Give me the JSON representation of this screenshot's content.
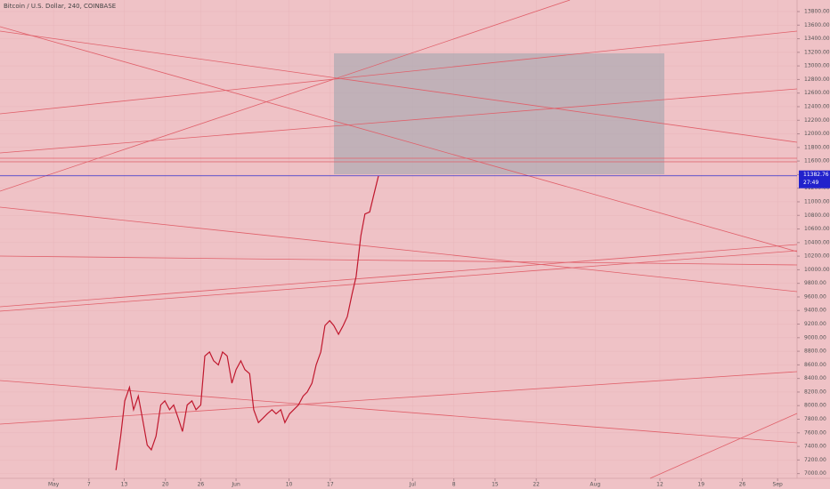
{
  "chart_data": {
    "type": "line",
    "title": "Bitcoin / U.S. Dollar, 240, COINBASE",
    "x": [
      131.6,
      132.4,
      133.1,
      133.9,
      134.6,
      135.4,
      136.1,
      136.9,
      137.6,
      138.4,
      139.2,
      139.9,
      140.7,
      141.4,
      142.2,
      142.9,
      143.7,
      144.5,
      145.2,
      146.0,
      146.7,
      147.5,
      148.2,
      149.0,
      149.7,
      150.5,
      151.3,
      152.0,
      152.8,
      153.5,
      154.3,
      155.0,
      155.8,
      156.5,
      157.3,
      158.1,
      158.8,
      159.6,
      160.3,
      161.1,
      161.8,
      162.6,
      163.4,
      164.1,
      164.9,
      165.6,
      166.4,
      167.1,
      167.9,
      168.6,
      169.4,
      170.2,
      170.9,
      171.7,
      172.4,
      173.2,
      173.9,
      174.7,
      175.4,
      176.2
    ],
    "values": [
      7050,
      7550,
      8070,
      8270,
      7940,
      8140,
      7810,
      7420,
      7350,
      7550,
      8010,
      8070,
      7940,
      8010,
      7810,
      7620,
      8010,
      8070,
      7940,
      8010,
      8730,
      8790,
      8660,
      8600,
      8790,
      8730,
      8330,
      8530,
      8660,
      8530,
      8470,
      7940,
      7750,
      7810,
      7880,
      7940,
      7880,
      7940,
      7750,
      7880,
      7940,
      8010,
      8140,
      8200,
      8330,
      8600,
      8790,
      9180,
      9250,
      9180,
      9050,
      9180,
      9310,
      9640,
      9900,
      10500,
      10820,
      10850,
      11100,
      11383
    ],
    "color": "#c0182e",
    "last_price": 11382.76,
    "countdown": "27:49",
    "xlim": [
      111.9,
      247.3
    ],
    "ylim": [
      6930,
      13970
    ],
    "xticks": [
      {
        "value": 121,
        "label": "May"
      },
      {
        "value": 127,
        "label": "7"
      },
      {
        "value": 133,
        "label": "13"
      },
      {
        "value": 140,
        "label": "20"
      },
      {
        "value": 146,
        "label": "26"
      },
      {
        "value": 152,
        "label": "Jun"
      },
      {
        "value": 161,
        "label": "10"
      },
      {
        "value": 168,
        "label": "17"
      },
      {
        "value": 182,
        "label": "Jul"
      },
      {
        "value": 189,
        "label": "8"
      },
      {
        "value": 196,
        "label": "15"
      },
      {
        "value": 203,
        "label": "22"
      },
      {
        "value": 213,
        "label": "Aug"
      },
      {
        "value": 224,
        "label": "12"
      },
      {
        "value": 231,
        "label": "19"
      },
      {
        "value": 238,
        "label": "26"
      },
      {
        "value": 244,
        "label": "Sep"
      }
    ],
    "yticks": [
      {
        "value": 7000,
        "label": "7000.00"
      },
      {
        "value": 7200,
        "label": "7200.00"
      },
      {
        "value": 7400,
        "label": "7400.00"
      },
      {
        "value": 7600,
        "label": "7600.00"
      },
      {
        "value": 7800,
        "label": "7800.00"
      },
      {
        "value": 8000,
        "label": "8000.00"
      },
      {
        "value": 8200,
        "label": "8200.00"
      },
      {
        "value": 8400,
        "label": "8400.00"
      },
      {
        "value": 8600,
        "label": "8600.00"
      },
      {
        "value": 8800,
        "label": "8800.00"
      },
      {
        "value": 9000,
        "label": "9000.00"
      },
      {
        "value": 9200,
        "label": "9200.00"
      },
      {
        "value": 9400,
        "label": "9400.00"
      },
      {
        "value": 9600,
        "label": "9600.00"
      },
      {
        "value": 9800,
        "label": "9800.00"
      },
      {
        "value": 10000,
        "label": "10000.00"
      },
      {
        "value": 10200,
        "label": "10200.00"
      },
      {
        "value": 10400,
        "label": "10400.00"
      },
      {
        "value": 10600,
        "label": "10600.00"
      },
      {
        "value": 10800,
        "label": "10800.00"
      },
      {
        "value": 11000,
        "label": "11000.00"
      },
      {
        "value": 11200,
        "label": "11200.00"
      },
      {
        "value": 11400,
        "label": "11400.00"
      },
      {
        "value": 11600,
        "label": "11600.00"
      },
      {
        "value": 11800,
        "label": "11800.00"
      },
      {
        "value": 12000,
        "label": "12000.00"
      },
      {
        "value": 12200,
        "label": "12200.00"
      },
      {
        "value": 12400,
        "label": "12400.00"
      },
      {
        "value": 12600,
        "label": "12600.00"
      },
      {
        "value": 12800,
        "label": "12800.00"
      },
      {
        "value": 13000,
        "label": "13000.00"
      },
      {
        "value": 13200,
        "label": "13200.00"
      },
      {
        "value": 13400,
        "label": "13400.00"
      },
      {
        "value": 13600,
        "label": "13600.00"
      },
      {
        "value": 13800,
        "label": "13800.00"
      }
    ],
    "grid": true
  }
}
